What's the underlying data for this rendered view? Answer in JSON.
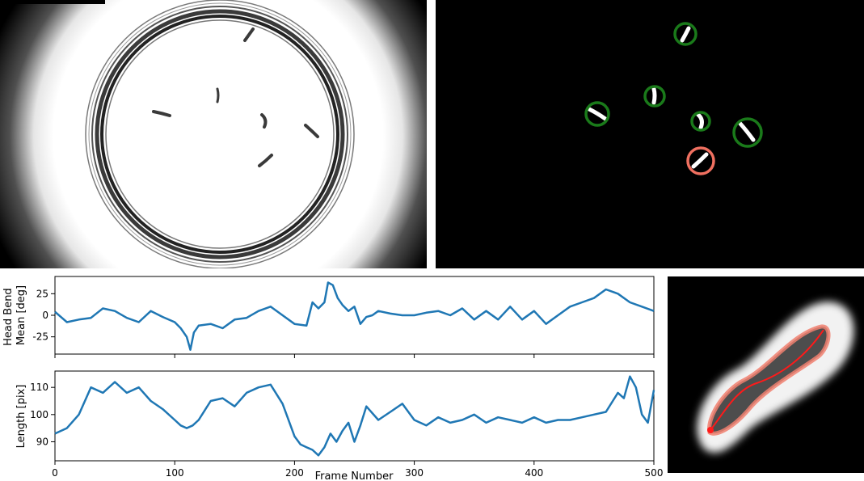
{
  "panels": {
    "raw_frame": {
      "caption": "",
      "description": "raw video frame: circular dish with worms"
    },
    "mask_frame": {
      "description": "segmented worms with tracking circles"
    },
    "zoom": {
      "description": "zoomed worm with skeleton"
    }
  },
  "colors": {
    "series": "#1f77b4",
    "track_ok": "#1a7a1a",
    "track_selected": "#f07060",
    "skeleton": "#ff1a1a",
    "contour": "#ff6a50"
  },
  "chart_data": [
    {
      "type": "line",
      "ylabel_lines": [
        "Head Bend",
        "Mean [deg]"
      ],
      "xlim": [
        0,
        500
      ],
      "ylim": [
        -45,
        45
      ],
      "yticks": [
        25,
        0,
        -25
      ],
      "xticks": [
        0,
        100,
        200,
        300,
        400,
        500
      ],
      "show_xticklabels": false,
      "series": [
        {
          "x": [
            0,
            10,
            20,
            30,
            40,
            50,
            60,
            70,
            80,
            90,
            100,
            105,
            110,
            113,
            116,
            120,
            130,
            140,
            150,
            160,
            170,
            180,
            190,
            200,
            210,
            215,
            220,
            225,
            228,
            232,
            236,
            240,
            245,
            250,
            255,
            260,
            265,
            270,
            280,
            290,
            300,
            310,
            320,
            330,
            340,
            350,
            360,
            370,
            380,
            390,
            400,
            410,
            420,
            430,
            440,
            450,
            460,
            470,
            480,
            490,
            500
          ],
          "y": [
            4,
            -8,
            -5,
            -3,
            8,
            5,
            -3,
            -8,
            5,
            -2,
            -8,
            -15,
            -25,
            -40,
            -20,
            -12,
            -10,
            -15,
            -5,
            -3,
            5,
            10,
            0,
            -10,
            -12,
            15,
            8,
            15,
            38,
            35,
            20,
            12,
            5,
            10,
            -10,
            -2,
            0,
            5,
            2,
            0,
            0,
            3,
            5,
            0,
            8,
            -5,
            5,
            -5,
            10,
            -5,
            5,
            -10,
            0,
            10,
            15,
            20,
            30,
            25,
            15,
            10,
            5
          ]
        }
      ]
    },
    {
      "type": "line",
      "ylabel": "Length [pix]",
      "xlabel": "Frame Number",
      "xlim": [
        0,
        500
      ],
      "ylim": [
        83,
        116
      ],
      "yticks": [
        110,
        100,
        90
      ],
      "xticks": [
        0,
        100,
        200,
        300,
        400,
        500
      ],
      "xticklabels": [
        "0",
        "100",
        "200",
        "300",
        "400",
        "500"
      ],
      "show_xticklabels": true,
      "series": [
        {
          "x": [
            0,
            10,
            20,
            30,
            40,
            50,
            60,
            70,
            80,
            90,
            100,
            105,
            110,
            115,
            120,
            130,
            140,
            150,
            160,
            170,
            180,
            190,
            200,
            205,
            210,
            215,
            220,
            225,
            230,
            235,
            240,
            245,
            250,
            255,
            260,
            270,
            280,
            290,
            300,
            310,
            320,
            330,
            340,
            350,
            360,
            370,
            380,
            390,
            400,
            410,
            420,
            430,
            440,
            450,
            460,
            470,
            475,
            480,
            485,
            490,
            495,
            500
          ],
          "y": [
            93,
            95,
            100,
            110,
            108,
            112,
            108,
            110,
            105,
            102,
            98,
            96,
            95,
            96,
            98,
            105,
            106,
            103,
            108,
            110,
            111,
            104,
            92,
            89,
            88,
            87,
            85,
            88,
            93,
            90,
            94,
            97,
            90,
            96,
            103,
            98,
            101,
            104,
            98,
            96,
            99,
            97,
            98,
            100,
            97,
            99,
            98,
            97,
            99,
            97,
            98,
            98,
            99,
            100,
            101,
            108,
            106,
            114,
            110,
            100,
            97,
            109
          ]
        }
      ]
    }
  ]
}
